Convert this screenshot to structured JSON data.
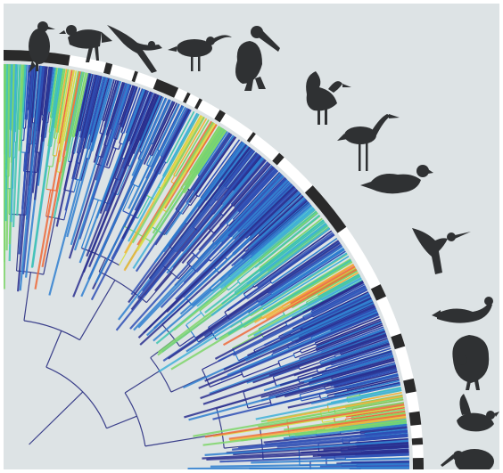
{
  "figure": {
    "description": "",
    "background": "#dde3e5",
    "branch_palette": [
      "#2a2f8f",
      "#2f4fb5",
      "#2f7fd0",
      "#3fb0d8",
      "#40c4b0",
      "#7ed66a",
      "#d8e04a",
      "#f2b23a",
      "#ef6a3a"
    ],
    "silhouette_color": "#2f3133",
    "band_color": "#2a2a2a"
  },
  "silhouettes": [
    {
      "name": "cormorant-icon"
    },
    {
      "name": "vulture-icon"
    },
    {
      "name": "gull-icon"
    },
    {
      "name": "curlew-icon"
    },
    {
      "name": "pelican-icon"
    },
    {
      "name": "heron-icon"
    },
    {
      "name": "crane-icon"
    },
    {
      "name": "pigeon-icon"
    },
    {
      "name": "hummingbird-icon"
    },
    {
      "name": "bustard-icon"
    },
    {
      "name": "turkey-icon"
    },
    {
      "name": "duck-icon"
    },
    {
      "name": "kiwi-icon"
    }
  ]
}
